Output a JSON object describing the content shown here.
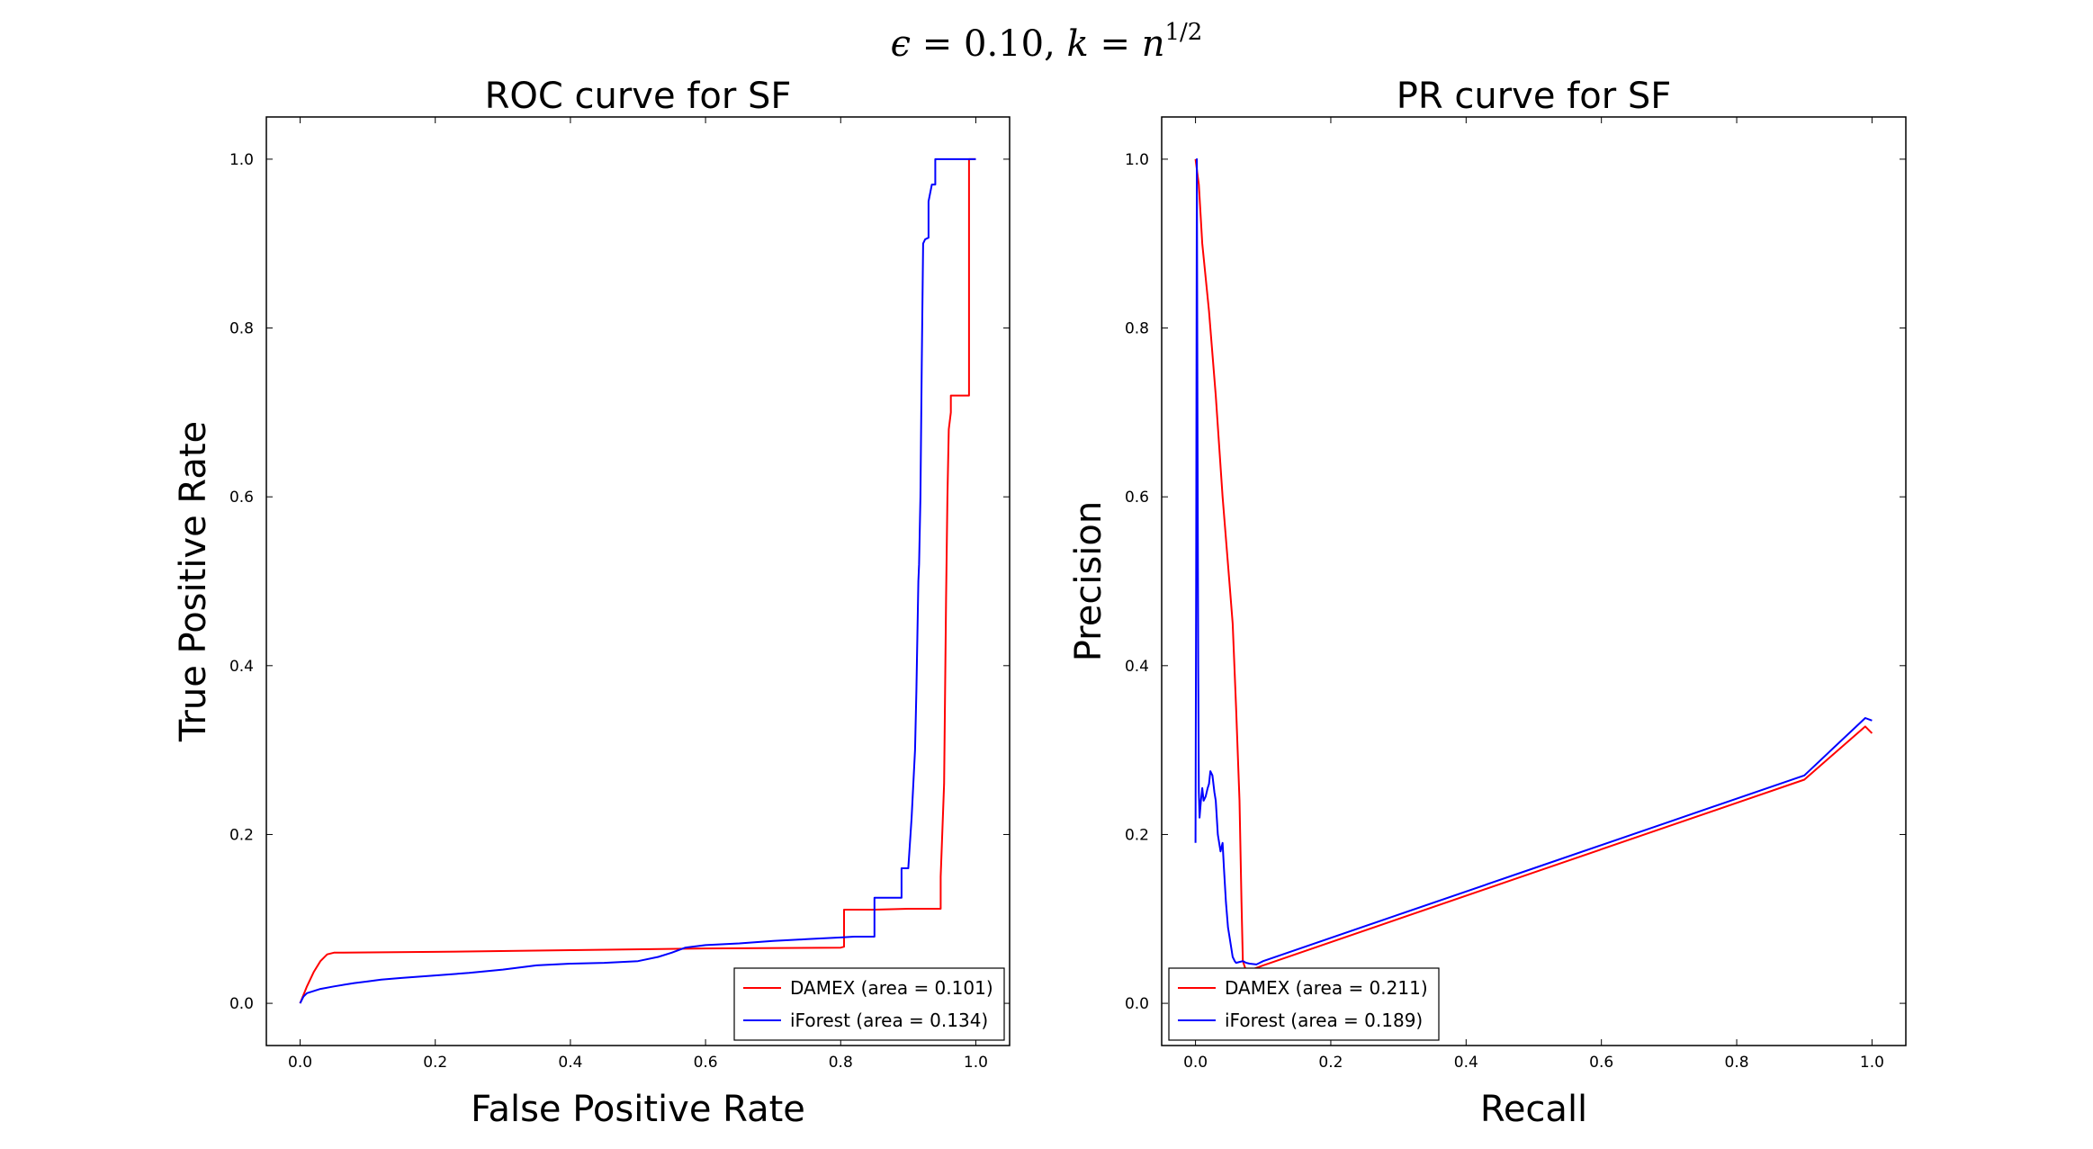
{
  "suptitle": {
    "epsilon": "ϵ",
    "eq1": " = ",
    "eps_value": "0.10",
    "comma": ", ",
    "k": "k",
    "eq2": " = ",
    "n": "n",
    "exponent": "1/2"
  },
  "colors": {
    "DAMEX": "#ff0000",
    "iForest": "#0000ff",
    "axis": "#000000"
  },
  "chart_data": [
    {
      "id": "roc",
      "type": "line",
      "title": "ROC curve for SF",
      "xlabel": "False Positive Rate",
      "ylabel": "True Positive Rate",
      "xlim": [
        -0.05,
        1.05
      ],
      "ylim": [
        -0.05,
        1.05
      ],
      "xticks": [
        0.0,
        0.2,
        0.4,
        0.6,
        0.8,
        1.0
      ],
      "yticks": [
        0.0,
        0.2,
        0.4,
        0.6,
        0.8,
        1.0
      ],
      "tick_labels_x": [
        "0.0",
        "0.2",
        "0.4",
        "0.6",
        "0.8",
        "1.0"
      ],
      "tick_labels_y": [
        "0.0",
        "0.2",
        "0.4",
        "0.6",
        "0.8",
        "1.0"
      ],
      "legend_position": "lower right",
      "legend": [
        "DAMEX (area = 0.101)",
        "iForest (area = 0.134)"
      ],
      "series": [
        {
          "name": "DAMEX",
          "color": "#ff0000",
          "x": [
            0.0,
            0.01,
            0.02,
            0.03,
            0.04,
            0.05,
            0.2,
            0.4,
            0.6,
            0.8,
            0.805,
            0.805,
            0.85,
            0.9,
            0.948,
            0.948,
            0.953,
            0.956,
            0.958,
            0.96,
            0.963,
            0.963,
            0.99,
            0.99,
            1.0
          ],
          "y": [
            0.0,
            0.02,
            0.037,
            0.05,
            0.058,
            0.06,
            0.061,
            0.063,
            0.065,
            0.066,
            0.067,
            0.111,
            0.111,
            0.112,
            0.112,
            0.15,
            0.26,
            0.48,
            0.6,
            0.68,
            0.7,
            0.72,
            0.72,
            1.0,
            1.0
          ]
        },
        {
          "name": "iForest",
          "color": "#0000ff",
          "x": [
            0.0,
            0.005,
            0.01,
            0.03,
            0.05,
            0.08,
            0.1,
            0.12,
            0.15,
            0.2,
            0.25,
            0.3,
            0.35,
            0.4,
            0.45,
            0.5,
            0.53,
            0.55,
            0.57,
            0.6,
            0.65,
            0.7,
            0.75,
            0.8,
            0.82,
            0.85,
            0.85,
            0.89,
            0.89,
            0.9,
            0.905,
            0.905,
            0.91,
            0.912,
            0.915,
            0.916,
            0.918,
            0.92,
            0.922,
            0.925,
            0.93,
            0.93,
            0.935,
            0.94,
            0.94,
            0.943,
            0.945,
            0.945,
            0.95,
            0.96,
            1.0
          ],
          "y": [
            0.0,
            0.008,
            0.012,
            0.017,
            0.02,
            0.024,
            0.026,
            0.028,
            0.03,
            0.033,
            0.036,
            0.04,
            0.045,
            0.047,
            0.048,
            0.05,
            0.055,
            0.06,
            0.066,
            0.069,
            0.071,
            0.074,
            0.076,
            0.078,
            0.079,
            0.079,
            0.125,
            0.125,
            0.16,
            0.16,
            0.22,
            0.22,
            0.3,
            0.37,
            0.5,
            0.52,
            0.6,
            0.76,
            0.9,
            0.905,
            0.907,
            0.95,
            0.97,
            0.97,
            1.0,
            1.0,
            1.0,
            1.0,
            1.0,
            1.0,
            1.0
          ]
        }
      ]
    },
    {
      "id": "pr",
      "type": "line",
      "title": "PR curve for SF",
      "xlabel": "Recall",
      "ylabel": "Precision",
      "xlim": [
        -0.05,
        1.05
      ],
      "ylim": [
        -0.05,
        1.05
      ],
      "xticks": [
        0.0,
        0.2,
        0.4,
        0.6,
        0.8,
        1.0
      ],
      "yticks": [
        0.0,
        0.2,
        0.4,
        0.6,
        0.8,
        1.0
      ],
      "tick_labels_x": [
        "0.0",
        "0.2",
        "0.4",
        "0.6",
        "0.8",
        "1.0"
      ],
      "tick_labels_y": [
        "0.0",
        "0.2",
        "0.4",
        "0.6",
        "0.8",
        "1.0"
      ],
      "legend_position": "lower left",
      "legend": [
        "DAMEX (area = 0.211)",
        "iForest (area = 0.189)"
      ],
      "series": [
        {
          "name": "DAMEX",
          "color": "#ff0000",
          "x": [
            0.0,
            0.005,
            0.01,
            0.02,
            0.03,
            0.04,
            0.05,
            0.055,
            0.06,
            0.065,
            0.068,
            0.07,
            0.075,
            0.08,
            0.1,
            0.3,
            0.5,
            0.7,
            0.9,
            0.99,
            1.0
          ],
          "y": [
            1.0,
            0.97,
            0.9,
            0.82,
            0.72,
            0.6,
            0.5,
            0.45,
            0.35,
            0.24,
            0.12,
            0.05,
            0.038,
            0.039,
            0.045,
            0.1,
            0.155,
            0.21,
            0.265,
            0.328,
            0.32
          ]
        },
        {
          "name": "iForest",
          "color": "#0000ff",
          "x": [
            0.0,
            0.001,
            0.002,
            0.003,
            0.004,
            0.005,
            0.006,
            0.008,
            0.01,
            0.012,
            0.015,
            0.018,
            0.02,
            0.022,
            0.025,
            0.028,
            0.03,
            0.033,
            0.035,
            0.037,
            0.04,
            0.042,
            0.045,
            0.048,
            0.05,
            0.055,
            0.058,
            0.06,
            0.065,
            0.07,
            0.075,
            0.08,
            0.09,
            0.1,
            0.3,
            0.5,
            0.7,
            0.9,
            0.99,
            1.0
          ],
          "y": [
            0.19,
            0.5,
            1.0,
            0.7,
            0.4,
            0.25,
            0.22,
            0.24,
            0.255,
            0.24,
            0.245,
            0.255,
            0.26,
            0.275,
            0.27,
            0.25,
            0.24,
            0.2,
            0.19,
            0.18,
            0.19,
            0.16,
            0.12,
            0.09,
            0.08,
            0.055,
            0.05,
            0.048,
            0.049,
            0.05,
            0.048,
            0.047,
            0.046,
            0.05,
            0.105,
            0.16,
            0.215,
            0.27,
            0.338,
            0.335
          ]
        }
      ]
    }
  ]
}
